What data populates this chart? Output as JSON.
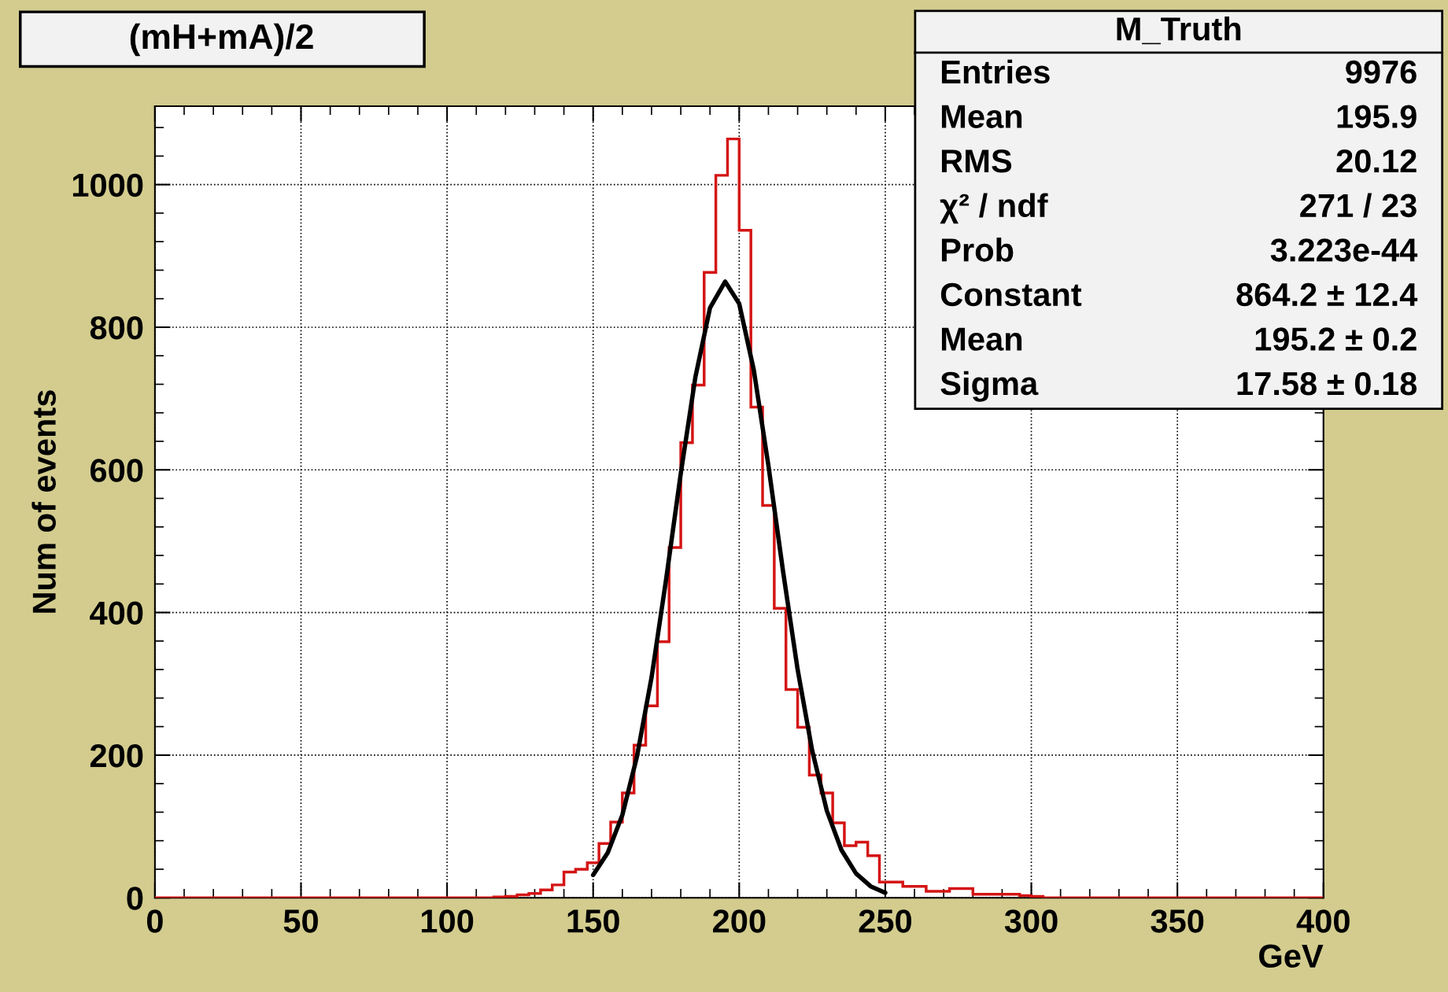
{
  "chart_data": {
    "type": "histogram",
    "title": "(mH+mA)/2",
    "xlabel": "GeV",
    "ylabel": "Num of events",
    "bins": [
      0,
      4,
      8,
      12,
      16,
      20,
      24,
      28,
      32,
      36,
      40,
      44,
      48,
      52,
      56,
      60,
      64,
      68,
      72,
      76,
      80,
      84,
      88,
      92,
      96,
      100,
      104,
      108,
      112,
      116,
      120,
      124,
      128,
      132,
      136,
      140,
      144,
      148,
      152,
      156,
      160,
      164,
      168,
      172,
      176,
      180,
      184,
      188,
      192,
      196,
      200,
      204,
      208,
      212,
      216,
      220,
      224,
      228,
      232,
      236,
      240,
      244,
      248,
      252,
      256,
      260,
      264,
      268,
      272,
      276,
      280,
      284,
      288,
      292,
      296,
      300,
      304,
      308,
      312,
      316,
      320,
      324,
      328,
      332,
      336,
      340,
      344,
      348,
      352,
      356,
      360,
      364,
      368,
      372,
      376,
      380,
      384,
      388,
      392,
      396,
      400
    ],
    "series": [
      {
        "color": "#d41414",
        "values": [
          0,
          0,
          0,
          0,
          0,
          0,
          0,
          0,
          0,
          0,
          0,
          0,
          0,
          0,
          0,
          0,
          0,
          0,
          0,
          0,
          0,
          0,
          0,
          0,
          0,
          0,
          0,
          0,
          0,
          1,
          2,
          4,
          6,
          11,
          18,
          36,
          40,
          49,
          76,
          106,
          147,
          214,
          269,
          359,
          491,
          638,
          719,
          877,
          1013,
          1064,
          936,
          688,
          550,
          406,
          292,
          239,
          172,
          147,
          105,
          73,
          78,
          59,
          22,
          22,
          16,
          16,
          9,
          9,
          13,
          13,
          5,
          5,
          5,
          5,
          3,
          2,
          0,
          0,
          0,
          0,
          0,
          0,
          0,
          0,
          0,
          0,
          0,
          0,
          0,
          0,
          0,
          0,
          0,
          0,
          0,
          0,
          0,
          0,
          0,
          0
        ]
      },
      {
        "type": "line",
        "color": "#000000",
        "x": [
          150,
          155,
          160,
          165,
          170,
          175,
          180,
          185,
          190,
          195.2,
          200,
          205,
          210,
          215,
          220,
          225,
          230,
          235,
          240,
          245,
          250
        ],
        "values": [
          32,
          63,
          116,
          198,
          309,
          447,
          595,
          730,
          827,
          864,
          833,
          740,
          606,
          458,
          320,
          206,
          122,
          67,
          34,
          16,
          7
        ]
      }
    ],
    "xlim": [
      0,
      400
    ],
    "ylim": [
      0,
      1110
    ],
    "xticks": [
      0,
      50,
      100,
      150,
      200,
      250,
      300,
      350,
      400
    ],
    "yticks": [
      0,
      200,
      400,
      600,
      800,
      1000
    ],
    "grid": true,
    "annotations": [
      "M_Truth",
      "Entries",
      "9976",
      "Mean",
      "195.9",
      "RMS",
      "20.12",
      "χ² / ndf",
      "271 / 23",
      "Prob",
      "3.223e-44",
      "Constant",
      "864.2 ± 12.4",
      "Mean",
      "195.2 ± 0.2",
      "Sigma",
      "17.58 ± 0.18"
    ]
  }
}
